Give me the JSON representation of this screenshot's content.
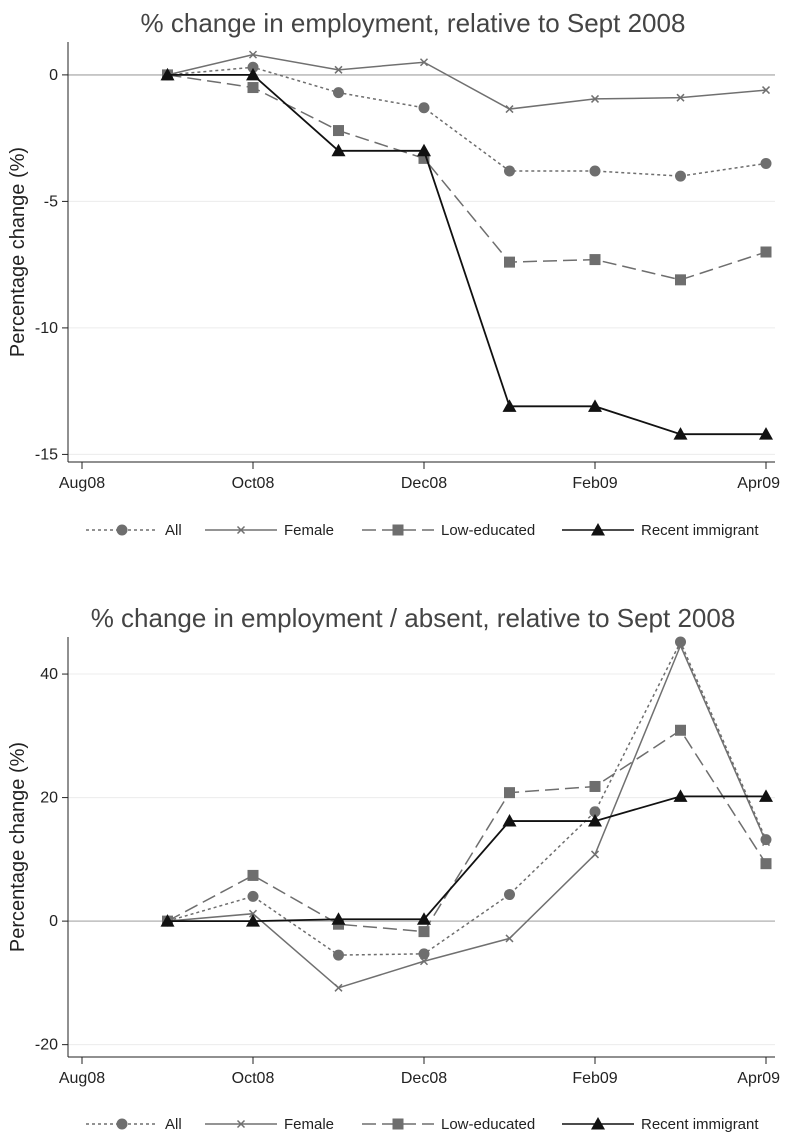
{
  "chart_data": [
    {
      "type": "line",
      "title": "% change in employment, relative to Sept 2008",
      "xlabel": "",
      "ylabel": "Percentage change (%)",
      "x": [
        "Sep08",
        "Oct08",
        "Nov08",
        "Dec08",
        "Jan09",
        "Feb09",
        "Mar09",
        "Apr09"
      ],
      "xticks": [
        "Aug08",
        "Oct08",
        "Dec08",
        "Feb09",
        "Apr09"
      ],
      "yticks": [
        0,
        -5,
        -10,
        -15
      ],
      "ylim": [
        -15.3,
        1.3
      ],
      "grid": true,
      "legend_position": "bottom",
      "series": [
        {
          "name": "All",
          "marker": "circle",
          "dash": "dotted",
          "color": "#6e6e6e",
          "values": [
            0,
            0.3,
            -0.7,
            -1.3,
            -3.8,
            -3.8,
            -4.0,
            -3.5
          ]
        },
        {
          "name": "Female",
          "marker": "x",
          "dash": "solid",
          "color": "#707070",
          "values": [
            0,
            0.8,
            0.2,
            0.5,
            -1.35,
            -0.95,
            -0.9,
            -0.6
          ]
        },
        {
          "name": "Low-educated",
          "marker": "square",
          "dash": "dashed",
          "color": "#6e6e6e",
          "values": [
            0,
            -0.5,
            -2.2,
            -3.3,
            -7.4,
            -7.3,
            -8.1,
            -7.0
          ]
        },
        {
          "name": "Recent immigrant",
          "marker": "triangle",
          "dash": "solid",
          "color": "#111111",
          "values": [
            0,
            0,
            -3.0,
            -3.0,
            -13.1,
            -13.1,
            -14.2,
            -14.2
          ]
        }
      ]
    },
    {
      "type": "line",
      "title": "% change in employment / absent, relative to Sept 2008",
      "xlabel": "",
      "ylabel": "Percentage change (%)",
      "x": [
        "Sep08",
        "Oct08",
        "Nov08",
        "Dec08",
        "Jan09",
        "Feb09",
        "Mar09",
        "Apr09"
      ],
      "xticks": [
        "Aug08",
        "Oct08",
        "Dec08",
        "Feb09",
        "Apr09"
      ],
      "yticks": [
        40,
        20,
        0,
        -20
      ],
      "ylim": [
        -22,
        46
      ],
      "grid": true,
      "legend_position": "bottom",
      "series": [
        {
          "name": "All",
          "marker": "circle",
          "dash": "dotted",
          "color": "#6e6e6e",
          "values": [
            0,
            4.0,
            -5.5,
            -5.3,
            4.3,
            17.7,
            45.2,
            13.2
          ]
        },
        {
          "name": "Female",
          "marker": "x",
          "dash": "solid",
          "color": "#707070",
          "values": [
            0,
            1.2,
            -10.8,
            -6.5,
            -2.8,
            10.8,
            44.6,
            12.8
          ]
        },
        {
          "name": "Low-educated",
          "marker": "square",
          "dash": "dashed",
          "color": "#6e6e6e",
          "values": [
            0,
            7.4,
            -0.5,
            -1.7,
            20.8,
            21.8,
            30.9,
            9.3
          ]
        },
        {
          "name": "Recent immigrant",
          "marker": "triangle",
          "dash": "solid",
          "color": "#111111",
          "values": [
            0,
            0,
            0.3,
            0.3,
            16.2,
            16.2,
            20.2,
            20.2
          ]
        }
      ]
    }
  ]
}
